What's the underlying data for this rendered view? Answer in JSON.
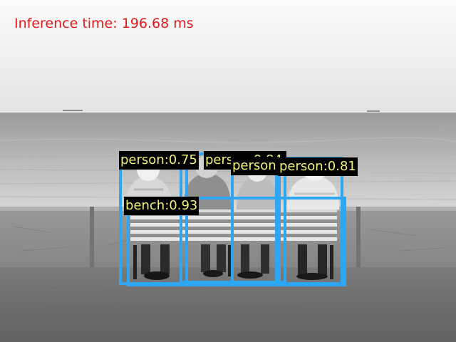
{
  "overlay": {
    "inference_text": "Inference time: 196.68 ms",
    "text_color": "#e31b1b"
  },
  "detections": [
    {
      "label": "person:0.75",
      "category": "person",
      "confidence": 0.75
    },
    {
      "label": "person:0.84",
      "category": "person",
      "confidence": 0.84
    },
    {
      "label": "person",
      "category": "person",
      "confidence": null
    },
    {
      "label": "person:0.81",
      "category": "person",
      "confidence": 0.81
    },
    {
      "label": "bench:0.93",
      "category": "bench",
      "confidence": 0.93
    }
  ],
  "colors": {
    "box": "#2ea6f2",
    "label_background": "#000000",
    "label_text": "#f2f27a"
  }
}
